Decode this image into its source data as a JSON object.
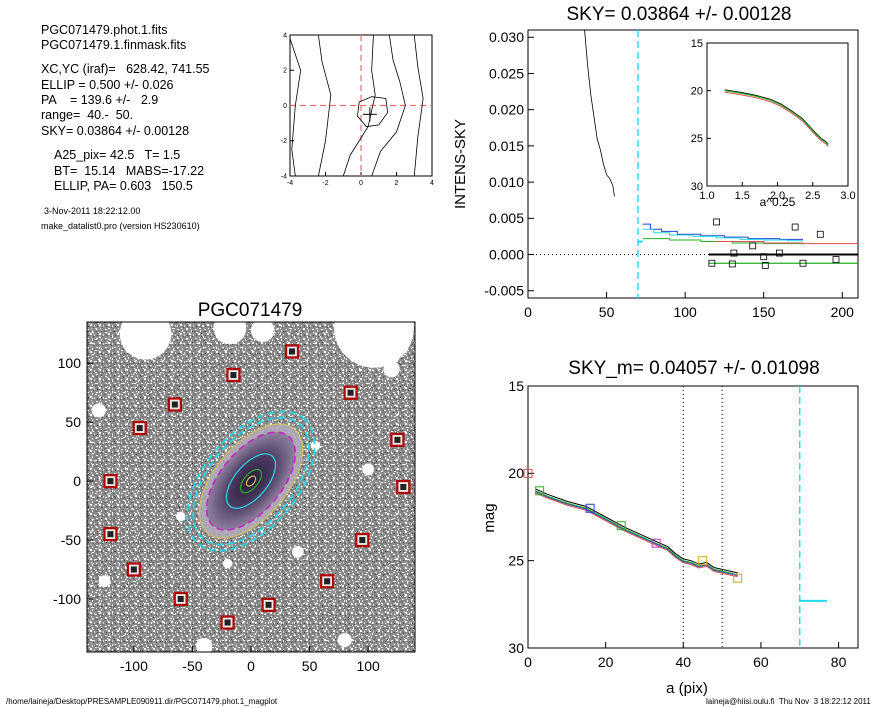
{
  "header": {
    "file1": "PGC071479.phot.1.fits",
    "file2": "PGC071479.1.finmask.fits",
    "xcyc": "XC,YC (iraf)=   628.42, 741.55",
    "ellip": "ELLIP = 0.500 +/- 0.026",
    "pa": "PA    = 139.6 +/-   2.9",
    "range": "range=  40.-  50.",
    "sky": "SKY= 0.03864 +/- 0.00128",
    "a25": "A25_pix= 42.5   T= 1.5",
    "bt": "BT=  15.14   MABS=-17.22",
    "ellippa": "ELLIP, PA= 0.603   150.5",
    "date": "3-Nov-2011 18:22:12.00",
    "program": "make_datalist0.pro (version HS230610)"
  },
  "footer": {
    "path": "/home/laineja/Desktop/PRESAMPLE090911.dir/PGC071479.phot.1_magplot",
    "user": "laineja@hiisi.oulu.fi  Thu Nov  3 18:22:12 2011"
  },
  "colors": {
    "cyan": "#22d8e8",
    "blue": "#2040d0",
    "green": "#20b020",
    "red": "#e05050",
    "orange": "#e0a020",
    "magenta": "#c030c0",
    "mask_red": "#b00000",
    "contour_yellow": "#d0c060"
  },
  "chart_data": [
    {
      "id": "center-contour",
      "type": "line",
      "xlim": [
        -4,
        4
      ],
      "ylim": [
        -4,
        4
      ],
      "xticks": [
        "-4",
        "-2",
        "0",
        "2",
        "4"
      ],
      "yticks": [
        "-4",
        "-2",
        "0",
        "2",
        "4"
      ],
      "crosshair": [
        0,
        0
      ],
      "center_marker": [
        0.5,
        -0.5
      ]
    },
    {
      "id": "sky-profile",
      "type": "line",
      "title": "SKY= 0.03864 +/- 0.00128",
      "ylabel": "INTENS-SKY",
      "xlabel": "",
      "xlim": [
        0,
        210
      ],
      "ylim": [
        -0.006,
        0.031
      ],
      "xticks": [
        "0",
        "50",
        "100",
        "150",
        "200"
      ],
      "yticks": [
        "0.030",
        "0.025",
        "0.020",
        "0.015",
        "0.010",
        "0.005",
        "0.000",
        "-0.005"
      ],
      "ytick_values": [
        0.03,
        0.025,
        0.02,
        0.015,
        0.01,
        0.005,
        0.0,
        -0.005
      ],
      "sky_limit_x": 70,
      "profile": {
        "x": [
          36,
          38,
          40,
          42,
          44,
          46,
          48,
          50,
          52,
          54,
          55
        ],
        "y": [
          0.031,
          0.026,
          0.022,
          0.019,
          0.016,
          0.0145,
          0.0125,
          0.011,
          0.0105,
          0.0095,
          0.008
        ]
      },
      "steps_blue": {
        "x": [
          73,
          78,
          85,
          95,
          110,
          125,
          140,
          160,
          175
        ],
        "y": [
          0.0042,
          0.0035,
          0.0032,
          0.0028,
          0.0026,
          0.0024,
          0.0022,
          0.0021,
          0.0021
        ]
      },
      "steps_cyan": {
        "x": [
          73,
          80,
          90,
          105,
          120,
          135,
          150,
          165,
          175
        ],
        "y": [
          0.0035,
          0.003,
          0.0027,
          0.0025,
          0.0023,
          0.0021,
          0.002,
          0.0019,
          0.0019
        ]
      },
      "steps_red": {
        "x": [
          120,
          150,
          175,
          210
        ],
        "y": [
          0.0018,
          0.0016,
          0.0015,
          0.0015
        ]
      },
      "steps_green": {
        "x": [
          73,
          90,
          110,
          130,
          150,
          175
        ],
        "y": [
          0.0022,
          0.002,
          0.0018,
          0.0016,
          0.0015,
          0.0014
        ]
      },
      "level_black": {
        "x": [
          115,
          210
        ],
        "y": [
          0.0,
          0.0
        ]
      },
      "level_green": {
        "x": [
          115,
          210
        ],
        "y": [
          -0.0012,
          -0.0012
        ]
      },
      "cyan_sky_segment": {
        "x": [
          70,
          73
        ],
        "y": [
          0.0018,
          0.0018
        ]
      },
      "squares": [
        [
          120,
          0.0045
        ],
        [
          170,
          0.0038
        ],
        [
          186,
          0.0028
        ],
        [
          143,
          0.0012
        ],
        [
          160,
          0.0002
        ],
        [
          131,
          0.0002
        ],
        [
          150,
          -0.0003
        ],
        [
          117,
          -0.0012
        ],
        [
          130,
          -0.0013
        ],
        [
          175,
          -0.0012
        ],
        [
          196,
          -0.0007
        ],
        [
          151,
          -0.0015
        ]
      ],
      "inset": {
        "xlim": [
          1.0,
          3.0
        ],
        "ylim": [
          15,
          30
        ],
        "xlabel": "a^0.25",
        "xticks": [
          "1.0",
          "1.5",
          "2.0",
          "2.5",
          "3.0"
        ],
        "yticks": [
          "15",
          "20",
          "25",
          "30"
        ],
        "x": [
          1.25,
          1.5,
          1.7,
          1.9,
          2.05,
          2.2,
          2.35,
          2.45,
          2.55,
          2.62,
          2.68,
          2.72
        ],
        "y": [
          20.0,
          20.3,
          20.6,
          21.0,
          21.5,
          22.2,
          23.0,
          23.8,
          24.6,
          25.1,
          25.4,
          25.7
        ]
      }
    },
    {
      "id": "galaxy-image",
      "type": "scatter",
      "title": "PGC071479",
      "xlim": [
        -140,
        140
      ],
      "ylim": [
        -145,
        135
      ],
      "xticks": [
        "-100",
        "-50",
        "0",
        "50",
        "100"
      ],
      "yticks": [
        "100",
        "50",
        "0",
        "-50",
        "-100"
      ],
      "mask_points": [
        [
          -95,
          45
        ],
        [
          -65,
          65
        ],
        [
          -15,
          90
        ],
        [
          35,
          110
        ],
        [
          85,
          75
        ],
        [
          125,
          35
        ],
        [
          130,
          -5
        ],
        [
          -120,
          0
        ],
        [
          -120,
          -45
        ],
        [
          -100,
          -75
        ],
        [
          -60,
          -100
        ],
        [
          -20,
          -120
        ],
        [
          15,
          -105
        ],
        [
          65,
          -85
        ],
        [
          95,
          -50
        ]
      ],
      "ellipses": [
        {
          "a": 70,
          "b": 40,
          "pa": 50,
          "color": "cyan",
          "dash": true
        },
        {
          "a": 64,
          "b": 36,
          "pa": 50,
          "color": "cyan",
          "dash": true
        },
        {
          "a": 58,
          "b": 31,
          "pa": 50,
          "color": "contour_yellow",
          "dash": false
        },
        {
          "a": 50,
          "b": 26,
          "pa": 50,
          "color": "magenta",
          "dash": true
        },
        {
          "a": 28,
          "b": 14,
          "pa": 50,
          "color": "cyan",
          "dash": false
        },
        {
          "a": 12,
          "b": 6,
          "pa": 50,
          "color": "green",
          "dash": false
        },
        {
          "a": 5,
          "b": 3,
          "pa": 50,
          "color": "contour_yellow",
          "dash": false
        }
      ]
    },
    {
      "id": "mag-profile",
      "type": "line",
      "title": "SKY_m=  0.04057 +/- 0.01098",
      "ylabel": "mag",
      "xlabel": "a (pix)",
      "xlim": [
        0,
        85
      ],
      "ylim": [
        15,
        30
      ],
      "xticks": [
        "0",
        "20",
        "40",
        "60",
        "80"
      ],
      "yticks": [
        "15",
        "20",
        "25",
        "30"
      ],
      "range_lines": [
        40,
        50
      ],
      "sky_limit_x": 70,
      "sky_segment": {
        "x": [
          70,
          77
        ],
        "y": [
          27.3,
          27.3
        ]
      },
      "profile": {
        "x": [
          2,
          5,
          10,
          15,
          20,
          25,
          30,
          33,
          36,
          38,
          40,
          42,
          44,
          46,
          48,
          50,
          52,
          54
        ],
        "y": [
          21.0,
          21.3,
          21.7,
          22.0,
          22.6,
          23.2,
          23.7,
          24.0,
          24.3,
          24.7,
          25.0,
          25.1,
          25.3,
          25.2,
          25.5,
          25.6,
          25.7,
          25.8
        ]
      },
      "markers": [
        {
          "x": 0,
          "y": 20.0,
          "color": "red"
        },
        {
          "x": 3,
          "y": 21.0,
          "color": "green"
        },
        {
          "x": 16,
          "y": 22.0,
          "color": "blue"
        },
        {
          "x": 24,
          "y": 23.0,
          "color": "green"
        },
        {
          "x": 33,
          "y": 24.0,
          "color": "magenta"
        },
        {
          "x": 45,
          "y": 25.0,
          "color": "orange"
        },
        {
          "x": 54,
          "y": 26.0,
          "color": "orange"
        }
      ]
    }
  ]
}
